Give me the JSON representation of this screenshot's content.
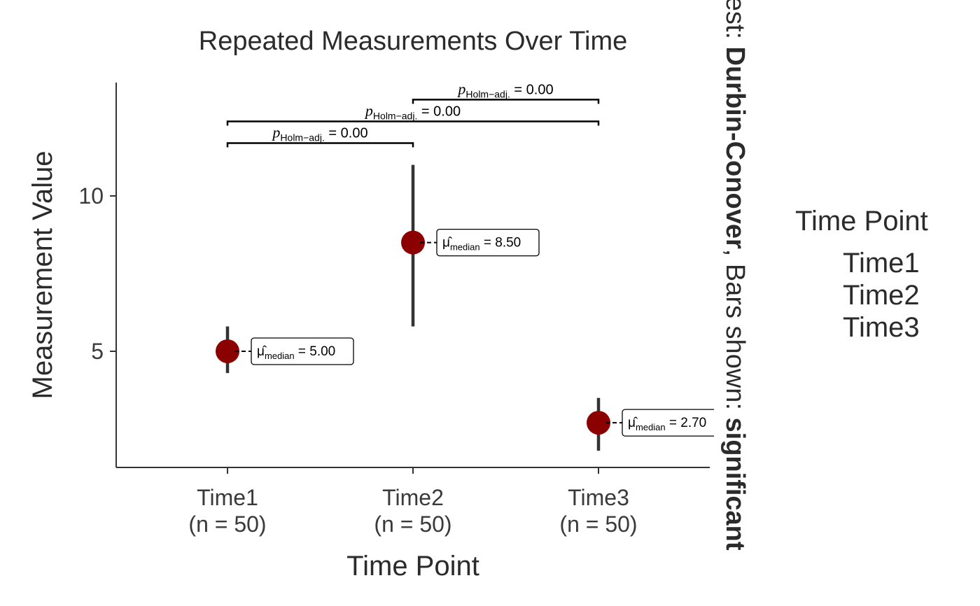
{
  "chart_data": {
    "type": "scatter",
    "title": "Repeated Measurements Over Time",
    "xlabel": "Time Point",
    "ylabel": "Measurement Value",
    "categories": [
      "Time1",
      "Time2",
      "Time3"
    ],
    "category_n_labels": [
      "(n = 50)",
      "(n = 50)",
      "(n = 50)"
    ],
    "ylim": [
      1.5,
      13.5
    ],
    "yticks": [
      5,
      10
    ],
    "points": [
      {
        "category": "Time1",
        "median": 5.0,
        "lower": 4.3,
        "upper": 5.8,
        "label_prefix": "μ̂",
        "label_sub": "median",
        "label_value": "= 5.00"
      },
      {
        "category": "Time2",
        "median": 8.5,
        "lower": 5.8,
        "upper": 11.0,
        "label_prefix": "μ̂",
        "label_sub": "median",
        "label_value": "= 8.50"
      },
      {
        "category": "Time3",
        "median": 2.7,
        "lower": 1.8,
        "upper": 3.5,
        "label_prefix": "μ̂",
        "label_sub": "median",
        "label_value": "= 2.70"
      }
    ],
    "comparisons": [
      {
        "from": "Time1",
        "to": "Time2",
        "y": 11.7,
        "label_p": "p",
        "label_sub": "Holm−adj.",
        "label_value": "= 0.00"
      },
      {
        "from": "Time1",
        "to": "Time3",
        "y": 12.4,
        "label_p": "p",
        "label_sub": "Holm−adj.",
        "label_value": "= 0.00"
      },
      {
        "from": "Time2",
        "to": "Time3",
        "y": 13.1,
        "label_p": "p",
        "label_sub": "Holm−adj.",
        "label_value": "= 0.00"
      }
    ],
    "point_color": "#8b0000",
    "errorbar_color": "#333333",
    "grid": false,
    "legend": {
      "title": "Time Point",
      "items": [
        "Time1",
        "Time2",
        "Time3"
      ],
      "placement": "right"
    },
    "side_caption": {
      "prefix": "Pairwise test: ",
      "bold1": "Durbin-Conover",
      "middle": ", Bars shown: ",
      "bold2": "significant"
    }
  }
}
